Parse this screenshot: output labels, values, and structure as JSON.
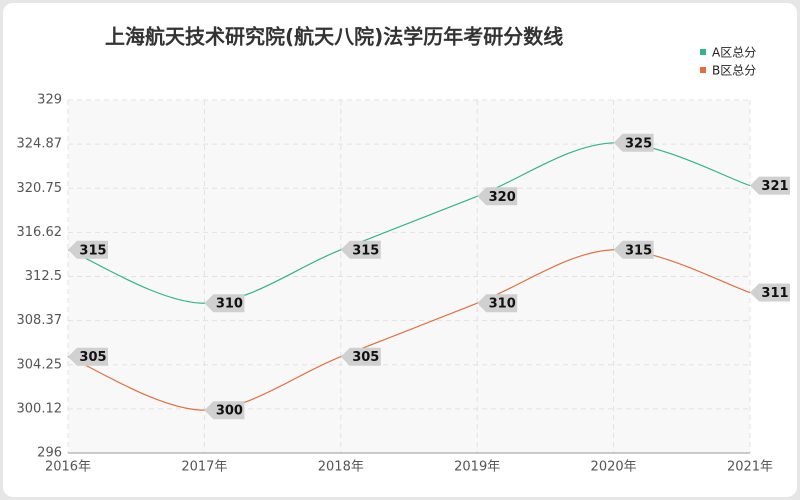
{
  "chart_data": {
    "type": "line",
    "title": "上海航天技术研究院(航天八院)法学历年考研分数线",
    "categories": [
      "2016年",
      "2017年",
      "2018年",
      "2019年",
      "2020年",
      "2021年"
    ],
    "series": [
      {
        "name": "A区总分",
        "color": "#2fb58b",
        "values": [
          315,
          310,
          315,
          320,
          325,
          321
        ]
      },
      {
        "name": "B区总分",
        "color": "#e2703f",
        "values": [
          305,
          300,
          305,
          310,
          315,
          311
        ]
      }
    ],
    "ylim": [
      296,
      329
    ],
    "yticks": [
      296,
      300.12,
      304.25,
      308.37,
      312.5,
      316.62,
      320.75,
      324.87,
      329
    ],
    "grid": true
  }
}
